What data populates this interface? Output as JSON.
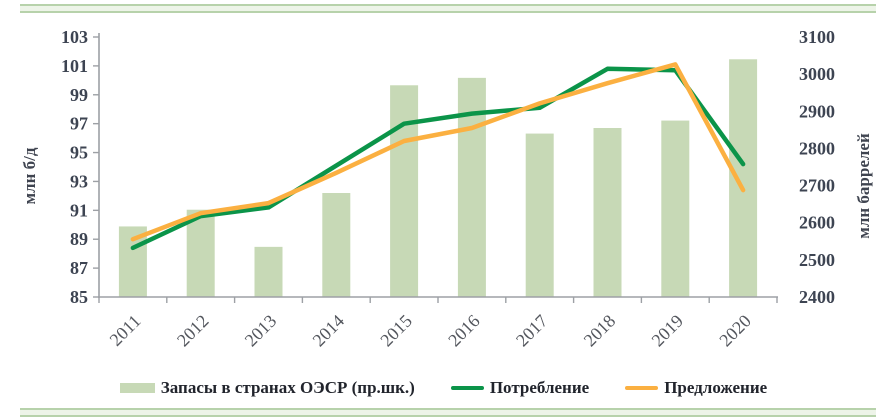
{
  "chart_data": {
    "type": "combo-bar-line",
    "title": "",
    "categories": [
      "2011",
      "2012",
      "2013",
      "2014",
      "2015",
      "2016",
      "2017",
      "2018",
      "2019",
      "2020"
    ],
    "bar_series": {
      "name": "Запасы в странах ОЭСР (пр.шк.)",
      "axis": "right",
      "values": [
        2590,
        2635,
        2535,
        2680,
        2970,
        2990,
        2840,
        2855,
        2875,
        3040
      ],
      "color": "#c7d9b6"
    },
    "line_series": [
      {
        "name": "Потребление",
        "axis": "left",
        "values": [
          88.4,
          90.6,
          91.2,
          94.1,
          97.0,
          97.7,
          98.1,
          100.8,
          100.7,
          94.2
        ],
        "color": "#0b9449"
      },
      {
        "name": "Предложение",
        "axis": "left",
        "values": [
          89.0,
          90.8,
          91.5,
          93.6,
          95.8,
          96.7,
          98.4,
          99.8,
          101.1,
          92.4
        ],
        "color": "#fbb041"
      }
    ],
    "left_axis": {
      "label": "млн б/д",
      "min": 85,
      "max": 103,
      "step": 2,
      "ticks": [
        "103",
        "101",
        "99",
        "97",
        "95",
        "93",
        "91",
        "89",
        "87",
        "85"
      ]
    },
    "right_axis": {
      "label": "млн баррелей",
      "min": 2400,
      "max": 3100,
      "step": 100,
      "ticks": [
        "3100",
        "3000",
        "2900",
        "2800",
        "2700",
        "2600",
        "2500",
        "2400"
      ]
    },
    "grid": false,
    "legend_position": "bottom",
    "styles": {
      "axis_line_color": "#9da0a5",
      "tick_label_color": "#3d4452",
      "category_label_color": "#54575e",
      "band_fill": "#edf4e8",
      "band_line": "#b7d2ab"
    }
  }
}
